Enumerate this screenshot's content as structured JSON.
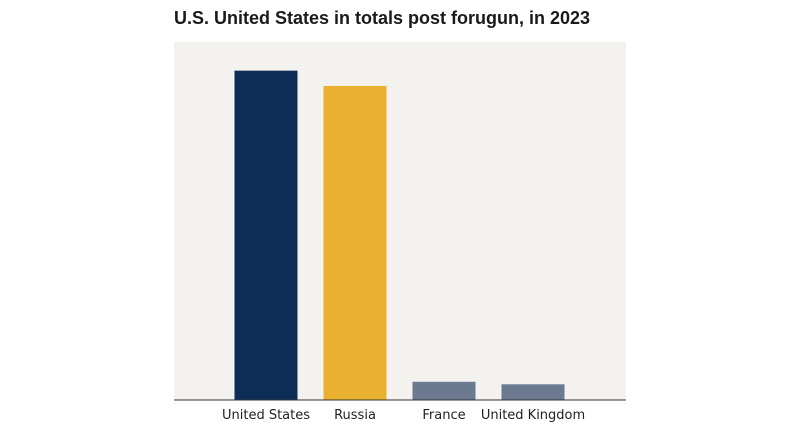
{
  "chart_data": {
    "type": "bar",
    "title": "U.S. United States in totals post forugun, in 2023",
    "categories": [
      "United States",
      "Russia",
      "France",
      "United Kingdom"
    ],
    "values": [
      5244,
      5000,
      290,
      250
    ],
    "ylim": [
      0,
      5700
    ],
    "grid": false,
    "legend": "none",
    "colors": [
      "#0d2d57",
      "#eab030",
      "#6b7a90",
      "#6b7a90"
    ],
    "plot_background": "#f4f2ee",
    "axis_color": "#333333"
  }
}
